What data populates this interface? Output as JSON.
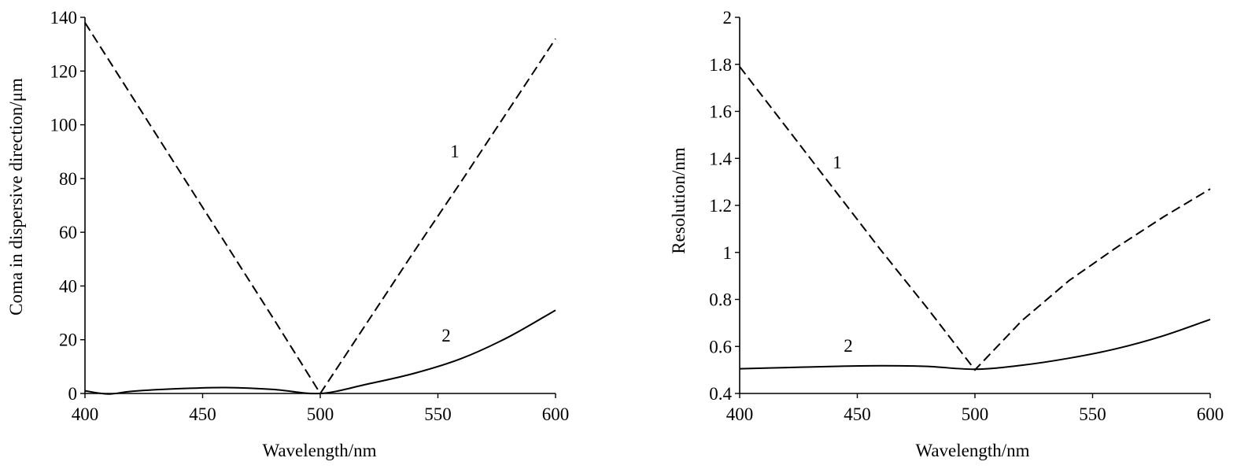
{
  "chart_data": [
    {
      "type": "line",
      "title": "",
      "xlabel": "Wavelength/nm",
      "ylabel": "Coma in dispersive direction/μm",
      "xlim": [
        400,
        600
      ],
      "ylim": [
        0,
        140
      ],
      "xticks": [
        400,
        450,
        500,
        550,
        600
      ],
      "yticks": [
        0,
        20,
        40,
        60,
        80,
        100,
        120,
        140
      ],
      "xtick_labels": [
        "400",
        "450",
        "500",
        "550",
        "600"
      ],
      "ytick_labels": [
        "0",
        "20",
        "40",
        "60",
        "80",
        "100",
        "120",
        "140"
      ],
      "grid": false,
      "series": [
        {
          "label": "1",
          "style": "dashed",
          "x": [
            400,
            420,
            440,
            460,
            480,
            500,
            520,
            540,
            560,
            580,
            600
          ],
          "y": [
            138,
            110.5,
            83,
            55.5,
            28,
            0,
            26.5,
            53,
            79,
            105.5,
            132
          ]
        },
        {
          "label": "2",
          "style": "solid",
          "x": [
            400,
            410,
            420,
            440,
            460,
            480,
            500,
            520,
            540,
            560,
            580,
            600
          ],
          "y": [
            1,
            -0.2,
            0.8,
            1.8,
            2.2,
            1.5,
            0,
            3.5,
            7.5,
            13,
            21,
            31
          ]
        }
      ]
    },
    {
      "type": "line",
      "title": "",
      "xlabel": "Wavelength/nm",
      "ylabel": "Resolution/nm",
      "xlim": [
        400,
        600
      ],
      "ylim": [
        0.4,
        2
      ],
      "xticks": [
        400,
        450,
        500,
        550,
        600
      ],
      "yticks": [
        0.4,
        0.6,
        0.8,
        1.0,
        1.2,
        1.4,
        1.6,
        1.8,
        2.0
      ],
      "xtick_labels": [
        "400",
        "450",
        "500",
        "550",
        "600"
      ],
      "ytick_labels": [
        "0.4",
        "0.6",
        "0.8",
        "1",
        "1.2",
        "1.4",
        "1.6",
        "1.8",
        "2"
      ],
      "grid": false,
      "series": [
        {
          "label": "1",
          "style": "dashed",
          "x": [
            400,
            420,
            440,
            460,
            480,
            500,
            520,
            540,
            560,
            580,
            600
          ],
          "y": [
            1.79,
            1.53,
            1.27,
            1.01,
            0.76,
            0.5,
            0.71,
            0.88,
            1.02,
            1.15,
            1.27
          ]
        },
        {
          "label": "2",
          "style": "solid",
          "x": [
            400,
            420,
            440,
            460,
            480,
            500,
            520,
            540,
            560,
            580,
            600
          ],
          "y": [
            0.505,
            0.51,
            0.515,
            0.518,
            0.515,
            0.503,
            0.52,
            0.55,
            0.59,
            0.645,
            0.715
          ]
        }
      ]
    }
  ]
}
